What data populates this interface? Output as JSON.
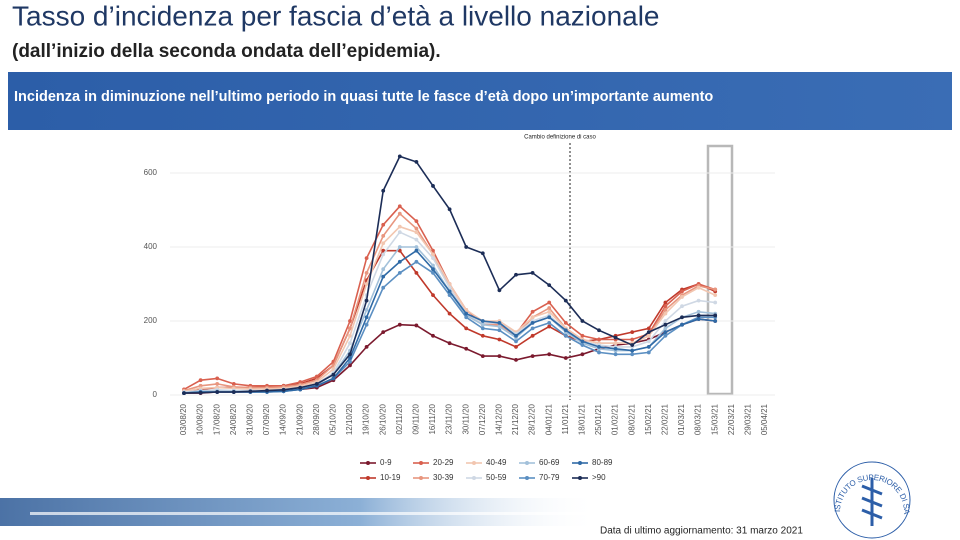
{
  "slide": {
    "title": "Tasso d’incidenza per fascia d’età a livello nazionale",
    "subtitle": "(dall’inizio della seconda ondata dell’epidemia).",
    "banner": "Incidenza in diminuzione nell’ultimo periodo in quasi tutte le fasce d’età dopo un’importante aumento",
    "footer": "Data di ultimo aggiornamento: 31 marzo 2021",
    "logo": "ISTITUTO SUPERIORE DI SANITÀ"
  },
  "chart_data": {
    "type": "line",
    "annotation": "Cambio definizione di caso",
    "categories": [
      "03/08/20",
      "10/08/20",
      "17/08/20",
      "24/08/20",
      "31/08/20",
      "07/09/20",
      "14/09/20",
      "21/09/20",
      "28/09/20",
      "05/10/20",
      "12/10/20",
      "19/10/20",
      "26/10/20",
      "02/11/20",
      "09/11/20",
      "16/11/20",
      "23/11/20",
      "30/11/20",
      "07/12/20",
      "14/12/20",
      "21/12/20",
      "28/12/20",
      "04/01/21",
      "11/01/21",
      "18/01/21",
      "25/01/21",
      "01/02/21",
      "08/02/21",
      "15/02/21",
      "22/02/21",
      "01/03/21",
      "08/03/21",
      "15/03/21",
      "22/03/21",
      "29/03/21",
      "05/04/21"
    ],
    "ylim": [
      0,
      680
    ],
    "yticks": [
      0,
      200,
      400,
      600
    ],
    "grid": true,
    "series": [
      {
        "name": "0-9",
        "color": "#7b1a2e",
        "values": [
          5,
          5,
          8,
          8,
          8,
          10,
          12,
          15,
          20,
          40,
          80,
          130,
          170,
          190,
          188,
          160,
          140,
          125,
          105,
          105,
          95,
          105,
          110,
          100,
          110,
          125,
          135,
          140,
          150,
          170,
          190,
          205,
          200,
          null,
          null,
          null
        ]
      },
      {
        "name": "10-19",
        "color": "#c0392b",
        "values": [
          10,
          15,
          20,
          20,
          20,
          22,
          25,
          30,
          45,
          80,
          180,
          310,
          390,
          390,
          330,
          270,
          220,
          180,
          160,
          150,
          130,
          160,
          185,
          160,
          145,
          150,
          160,
          170,
          180,
          250,
          285,
          300,
          280,
          null,
          null,
          null
        ]
      },
      {
        "name": "20-29",
        "color": "#d9604f",
        "values": [
          15,
          40,
          45,
          30,
          25,
          25,
          25,
          35,
          50,
          90,
          200,
          370,
          460,
          510,
          470,
          390,
          300,
          230,
          195,
          195,
          165,
          225,
          250,
          195,
          160,
          150,
          150,
          150,
          165,
          240,
          280,
          300,
          285,
          null,
          null,
          null
        ]
      },
      {
        "name": "30-39",
        "color": "#e8967f",
        "values": [
          12,
          25,
          30,
          22,
          20,
          20,
          22,
          28,
          40,
          80,
          180,
          330,
          430,
          490,
          450,
          380,
          290,
          220,
          190,
          190,
          160,
          210,
          235,
          180,
          150,
          140,
          140,
          140,
          160,
          230,
          270,
          295,
          285,
          null,
          null,
          null
        ]
      },
      {
        "name": "40-49",
        "color": "#f2c6b0",
        "values": [
          10,
          18,
          20,
          18,
          16,
          16,
          18,
          24,
          35,
          70,
          160,
          300,
          410,
          455,
          440,
          380,
          300,
          230,
          200,
          200,
          170,
          210,
          225,
          180,
          150,
          140,
          140,
          140,
          160,
          220,
          265,
          290,
          270,
          null,
          null,
          null
        ]
      },
      {
        "name": "50-59",
        "color": "#cfd8e4",
        "values": [
          8,
          12,
          14,
          12,
          12,
          12,
          15,
          20,
          30,
          60,
          140,
          270,
          380,
          440,
          420,
          370,
          290,
          220,
          195,
          195,
          165,
          200,
          215,
          175,
          145,
          135,
          130,
          130,
          145,
          200,
          240,
          255,
          250,
          null,
          null,
          null
        ]
      },
      {
        "name": "60-69",
        "color": "#a3c1da",
        "values": [
          6,
          10,
          10,
          10,
          10,
          10,
          12,
          18,
          28,
          55,
          120,
          230,
          340,
          400,
          400,
          350,
          280,
          215,
          190,
          185,
          155,
          195,
          210,
          170,
          140,
          125,
          120,
          120,
          130,
          180,
          210,
          225,
          220,
          null,
          null,
          null
        ]
      },
      {
        "name": "70-79",
        "color": "#5b8fc2",
        "values": [
          5,
          8,
          8,
          8,
          8,
          8,
          10,
          15,
          25,
          45,
          90,
          190,
          290,
          330,
          360,
          330,
          270,
          210,
          180,
          175,
          145,
          180,
          195,
          160,
          135,
          115,
          110,
          110,
          115,
          160,
          190,
          210,
          210,
          null,
          null,
          null
        ]
      },
      {
        "name": "80-89",
        "color": "#2f6aa6",
        "values": [
          5,
          8,
          8,
          8,
          8,
          8,
          10,
          15,
          25,
          45,
          100,
          210,
          320,
          360,
          390,
          340,
          280,
          220,
          200,
          195,
          160,
          195,
          210,
          175,
          145,
          130,
          125,
          120,
          130,
          170,
          190,
          205,
          200,
          null,
          null,
          null
        ]
      },
      {
        "name": ">90",
        "color": "#1c2d57",
        "values": [
          5,
          6,
          8,
          8,
          10,
          12,
          14,
          20,
          30,
          55,
          110,
          255,
          552,
          645,
          630,
          565,
          502,
          400,
          383,
          283,
          325,
          330,
          297,
          255,
          200,
          175,
          155,
          135,
          170,
          190,
          210,
          215,
          215,
          null,
          null,
          null
        ]
      }
    ]
  }
}
